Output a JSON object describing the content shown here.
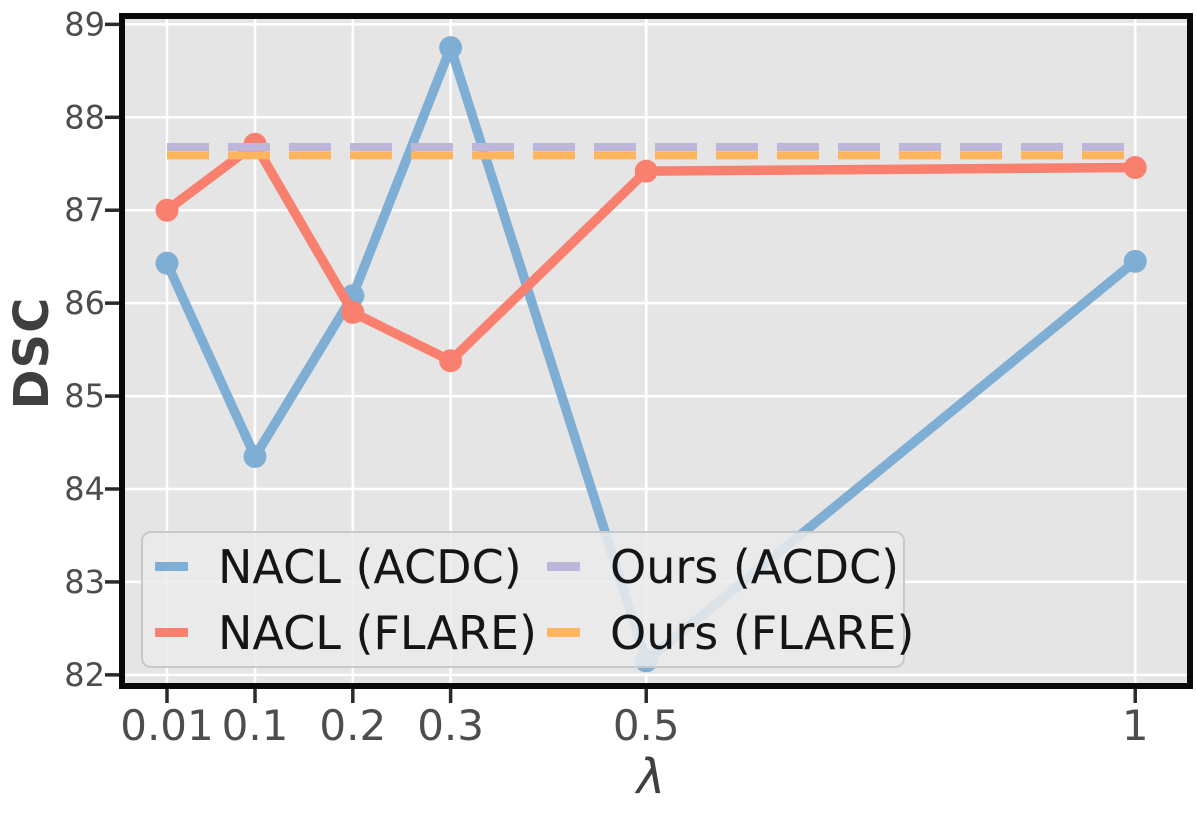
{
  "chart_data": {
    "type": "line",
    "title": "",
    "xlabel": "λ",
    "ylabel": "DSC",
    "x": [
      0.01,
      0.1,
      0.2,
      0.3,
      0.5,
      1
    ],
    "series": [
      {
        "name": "NACL (ACDC)",
        "color": "#7FAED5",
        "style": "solid",
        "markers": true,
        "values": [
          86.43,
          84.35,
          86.08,
          88.75,
          82.15,
          86.45
        ]
      },
      {
        "name": "NACL (FLARE)",
        "color": "#F9806E",
        "style": "solid",
        "markers": true,
        "values": [
          87.0,
          87.71,
          85.9,
          85.38,
          87.42,
          87.46
        ]
      },
      {
        "name": "Ours (ACDC)",
        "color": "#BDB5DA",
        "style": "dashed",
        "markers": false,
        "values": [
          87.68,
          87.68,
          87.68,
          87.68,
          87.68,
          87.68
        ]
      },
      {
        "name": "Ours (FLARE)",
        "color": "#FFB45E",
        "style": "dashed",
        "markers": false,
        "values": [
          87.59,
          87.59,
          87.59,
          87.59,
          87.59,
          87.59
        ]
      }
    ],
    "xticks": {
      "values": [
        0.01,
        0.1,
        0.2,
        0.3,
        0.5,
        1
      ],
      "labels": [
        "0.01",
        "0.1",
        "0.2",
        "0.3",
        "0.5",
        "1"
      ]
    },
    "yticks": {
      "values": [
        82,
        83,
        84,
        85,
        86,
        87,
        88,
        89
      ],
      "labels": [
        "82",
        "83",
        "84",
        "85",
        "86",
        "87",
        "88",
        "89"
      ]
    },
    "xlim": [
      -0.036,
      1.056
    ],
    "ylim": [
      81.88,
      89.09
    ],
    "grid": true,
    "legend": {
      "position": "lower left",
      "columns": 2,
      "order": [
        0,
        2,
        1,
        3
      ]
    }
  },
  "style": {
    "plot_bg": "#E5E5E5",
    "grid_color": "#FFFFFF",
    "frame_color": "#0A0A0A",
    "tick_color": "#2B2B2B",
    "tick_label_color": "#4D4D4D",
    "axis_label_color": "#3F3F3F",
    "line_width": 9.5,
    "marker_radius": 11.5,
    "dash_width": 8,
    "dash_pattern": "42 19"
  }
}
